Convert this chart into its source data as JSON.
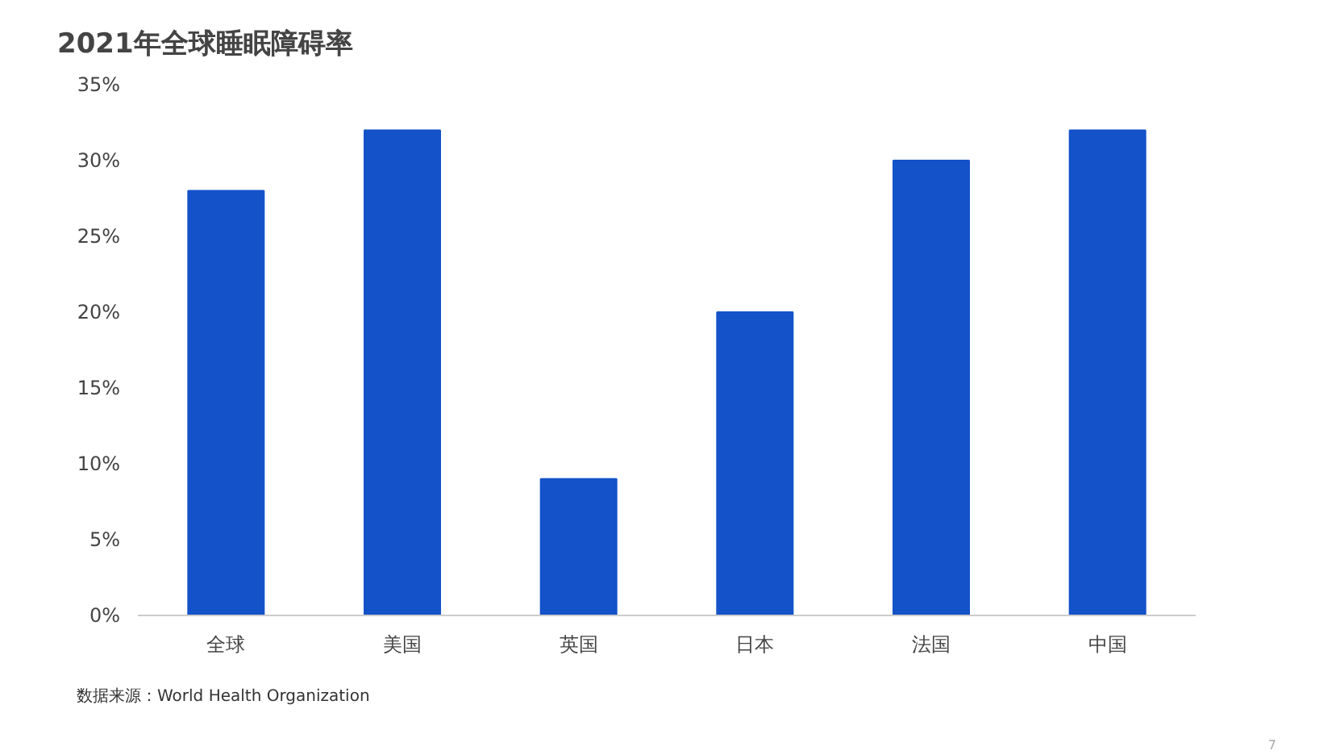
{
  "chart_data": {
    "type": "bar",
    "title": "2021年全球睡眠障碍率",
    "categories": [
      "全球",
      "美国",
      "英国",
      "日本",
      "法国",
      "中国"
    ],
    "values": [
      28,
      32,
      9,
      20,
      30,
      32
    ],
    "color": "#1452c9",
    "ylim": [
      0,
      35
    ],
    "yticks": [
      {
        "value": 0,
        "label": "0%"
      },
      {
        "value": 5,
        "label": "5%"
      },
      {
        "value": 10,
        "label": "10%"
      },
      {
        "value": 15,
        "label": "15%"
      },
      {
        "value": 20,
        "label": "20%"
      },
      {
        "value": 25,
        "label": "25%"
      },
      {
        "value": 30,
        "label": "30%"
      },
      {
        "value": 35,
        "label": "35%"
      }
    ],
    "grid": false,
    "annotations": [
      "数据来源：World Health Organization",
      "7"
    ]
  }
}
